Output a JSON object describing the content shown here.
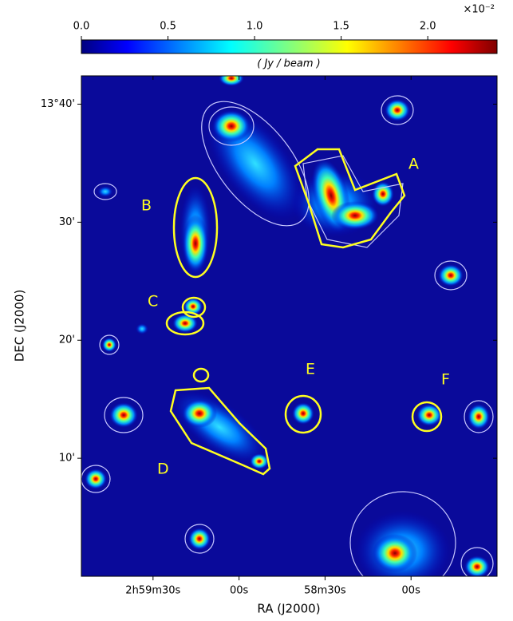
{
  "chart_data": {
    "type": "image",
    "xlabel": "RA (J2000)",
    "ylabel": "DEC (J2000)",
    "xlim": [
      115,
      -30
    ],
    "xticks": [
      {
        "value": 90,
        "label": "2h59m30s"
      },
      {
        "value": 60,
        "label": "00s"
      },
      {
        "value": 30,
        "label": "58m30s"
      },
      {
        "value": 0,
        "label": "00s"
      }
    ],
    "ylim": [
      0,
      42.4
    ],
    "yticks": [
      {
        "value": 40,
        "label": "13°40'"
      },
      {
        "value": 30,
        "label": "30'"
      },
      {
        "value": 20,
        "label": "20'"
      },
      {
        "value": 10,
        "label": "10'"
      }
    ],
    "colorbar": {
      "label": "( Jy / beam )",
      "multiplier": "×10⁻²",
      "lim": [
        0,
        2.4
      ],
      "ticks": [
        {
          "value": 0,
          "label": "0.0"
        },
        0.5,
        {
          "value": 1,
          "label": "1.0"
        },
        1.5,
        {
          "value": 2,
          "label": "2.0"
        }
      ]
    },
    "region_labels": [
      "A",
      "B",
      "C",
      "D",
      "E",
      "F"
    ]
  }
}
